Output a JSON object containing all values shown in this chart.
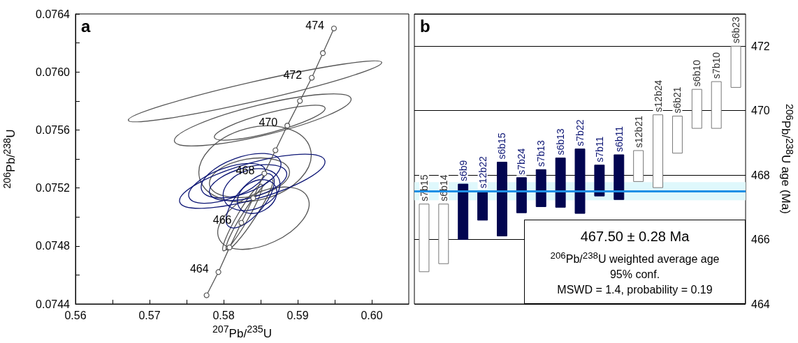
{
  "chart_data": [
    {
      "type": "line",
      "xlabel": "$^{207}$Pb/$^{235}$U",
      "ylabel": "$^{206}$Pb/$^{238}$U",
      "xlim": [
        0.56,
        0.605
      ],
      "ylim": [
        0.0744,
        0.0764
      ],
      "xticks": [
        0.56,
        {
          "value": 0.565,
          "label": null
        },
        0.57,
        {
          "value": 0.575,
          "label": null
        },
        0.58,
        {
          "value": 0.585,
          "label": null
        },
        0.59,
        {
          "value": 0.595,
          "label": null
        },
        {
          "value": 0.6,
          "label": "0.60"
        }
      ],
      "yticks": [
        0.0744,
        {
          "value": 0.0746,
          "label": null
        },
        0.0748,
        {
          "value": 0.075,
          "label": null
        },
        0.0752,
        {
          "value": 0.0754,
          "label": null
        },
        0.0756,
        {
          "value": 0.0758,
          "label": null
        },
        {
          "value": 0.076,
          "label": "0.0760"
        },
        {
          "value": 0.0762,
          "label": null
        },
        0.0764
      ],
      "annotations": [
        "a",
        {
          "text": "474",
          "x": 0.5949,
          "y": 0.0763
        },
        {
          "text": "472",
          "x": 0.5919,
          "y": 0.07596
        },
        {
          "text": "470",
          "x": 0.5886,
          "y": 0.07563
        },
        {
          "text": "468",
          "x": 0.5855,
          "y": 0.0753
        },
        {
          "text": "466",
          "x": 0.5824,
          "y": 0.07496
        },
        {
          "text": "464",
          "x": 0.5793,
          "y": 0.07462
        }
      ],
      "series": [
        {
          "color": "#555555",
          "marker": "circle",
          "x": [
            0.5777,
            0.5793,
            0.5808,
            0.5824,
            0.584,
            0.5855,
            0.587,
            0.5886,
            0.5903,
            0.5919,
            0.5934,
            0.5949
          ],
          "values": [
            0.07446,
            0.07462,
            0.07479,
            0.07496,
            0.07513,
            0.0753,
            0.07546,
            0.07563,
            0.0758,
            0.07596,
            0.07613,
            0.0763
          ]
        }
      ]
    },
    {
      "type": "bar",
      "ylabel": "$^{206}$Pb/$^{238}$U age (Ma)",
      "tick_labels": "y",
      "grid": "y",
      "categories": [
        "s7b15",
        "s6b14",
        "s6b9",
        "s12b22",
        "s6b15",
        "s7b24",
        "s7b13",
        "s6b13",
        "s7b22",
        "s7b11",
        "s6b11",
        "s12b21",
        "s12b24",
        "s6b21",
        "s6b10",
        "s7b10",
        "s6b23"
      ],
      "base": [
        465.0,
        465.25,
        466.0,
        466.6,
        466.11,
        466.83,
        467.02,
        467.0,
        466.81,
        467.35,
        467.24,
        467.8,
        467.61,
        468.68,
        469.45,
        469.45,
        470.72
      ],
      "values": [
        2.1,
        1.85,
        1.72,
        0.9,
        2.29,
        1.09,
        1.15,
        1.53,
        2.0,
        0.96,
        1.39,
        0.96,
        2.26,
        1.15,
        1.21,
        1.45,
        1.28
      ],
      "colors": [
        "#ffffff",
        "#ffffff",
        "#020550",
        "#020550",
        "#020550",
        "#020550",
        "#020550",
        "#020550",
        "#020550",
        "#020550",
        "#020550",
        "#ffffff",
        "#ffffff",
        "#ffffff",
        "#ffffff",
        "#ffffff",
        "#ffffff"
      ],
      "ylim": [
        464,
        473
      ],
      "yticks": [
        464,
        466,
        468,
        470,
        472
      ],
      "ref_lines": [
        {
          "axis": "y",
          "value": 467.5,
          "color": "#1e8fe6"
        }
      ],
      "bands": [
        {
          "axis": "y",
          "from": 467.22,
          "to": 467.78,
          "color": "#dff8fc"
        }
      ],
      "annotations": [
        "b",
        "467.50 ± 0.28 Ma",
        "$^{206}$Pb/$^{238}$U weighted average age",
        "95% conf.",
        "MSWD = 1.4, probability = 0.19"
      ]
    }
  ]
}
